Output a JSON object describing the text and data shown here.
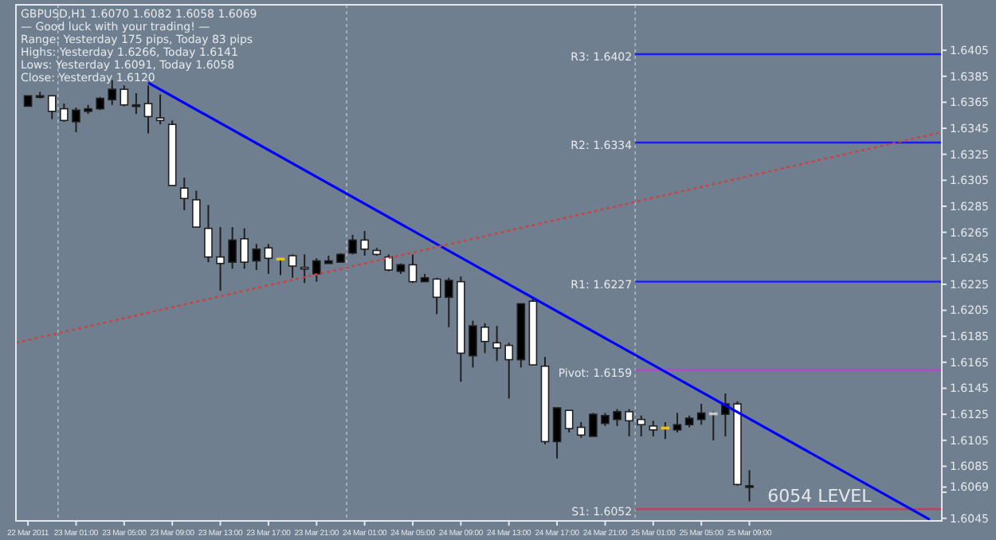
{
  "chart_data": {
    "type": "candlestick",
    "title": "GBPUSD,H1  1.6070 1.6082 1.6058 1.6069",
    "annotations": [
      "— Good luck with your trading! —",
      "Range: Yesterday 175 pips, Today 83 pips",
      "Highs: Yesterday 1.6266, Today 1.6141",
      "Lows: Yesterday 1.6091, Today 1.6058",
      "Close: Yesterday 1.6120",
      {
        "text": "6054 LEVEL",
        "x": "2011-03-25T10:30",
        "y": 1.6058
      }
    ],
    "x": [
      "2011-03-22T21:00",
      "2011-03-22T22:00",
      "2011-03-22T23:00",
      "2011-03-23T00:00",
      "2011-03-23T01:00",
      "2011-03-23T02:00",
      "2011-03-23T03:00",
      "2011-03-23T04:00",
      "2011-03-23T05:00",
      "2011-03-23T06:00",
      "2011-03-23T07:00",
      "2011-03-23T08:00",
      "2011-03-23T09:00",
      "2011-03-23T10:00",
      "2011-03-23T11:00",
      "2011-03-23T12:00",
      "2011-03-23T13:00",
      "2011-03-23T14:00",
      "2011-03-23T15:00",
      "2011-03-23T16:00",
      "2011-03-23T17:00",
      "2011-03-23T18:00",
      "2011-03-23T19:00",
      "2011-03-23T20:00",
      "2011-03-23T21:00",
      "2011-03-23T22:00",
      "2011-03-23T23:00",
      "2011-03-24T00:00",
      "2011-03-24T01:00",
      "2011-03-24T02:00",
      "2011-03-24T03:00",
      "2011-03-24T04:00",
      "2011-03-24T05:00",
      "2011-03-24T06:00",
      "2011-03-24T07:00",
      "2011-03-24T08:00",
      "2011-03-24T09:00",
      "2011-03-24T10:00",
      "2011-03-24T11:00",
      "2011-03-24T12:00",
      "2011-03-24T13:00",
      "2011-03-24T14:00",
      "2011-03-24T15:00",
      "2011-03-24T16:00",
      "2011-03-24T17:00",
      "2011-03-24T18:00",
      "2011-03-24T19:00",
      "2011-03-24T20:00",
      "2011-03-24T21:00",
      "2011-03-24T22:00",
      "2011-03-24T23:00",
      "2011-03-25T00:00",
      "2011-03-25T01:00",
      "2011-03-25T02:00",
      "2011-03-25T03:00",
      "2011-03-25T04:00",
      "2011-03-25T05:00",
      "2011-03-25T06:00",
      "2011-03-25T07:00",
      "2011-03-25T08:00",
      "2011-03-25T09:00"
    ],
    "ohlc": [
      [
        1.6362,
        1.637,
        1.6362,
        1.637
      ],
      [
        1.6369,
        1.6373,
        1.6368,
        1.637
      ],
      [
        1.637,
        1.637,
        1.6352,
        1.6358
      ],
      [
        1.636,
        1.6364,
        1.635,
        1.6351
      ],
      [
        1.635,
        1.6361,
        1.6342,
        1.6359
      ],
      [
        1.6358,
        1.6363,
        1.6356,
        1.636
      ],
      [
        1.636,
        1.6369,
        1.6359,
        1.6368
      ],
      [
        1.6367,
        1.6382,
        1.6363,
        1.6375
      ],
      [
        1.6375,
        1.6378,
        1.6362,
        1.6363
      ],
      [
        1.6362,
        1.6372,
        1.6356,
        1.6363
      ],
      [
        1.6364,
        1.6378,
        1.6341,
        1.6354
      ],
      [
        1.6353,
        1.6371,
        1.6348,
        1.6351
      ],
      [
        1.6348,
        1.6351,
        1.6301,
        1.6301
      ],
      [
        1.6299,
        1.6307,
        1.6282,
        1.6291
      ],
      [
        1.629,
        1.6297,
        1.6269,
        1.6269
      ],
      [
        1.6268,
        1.6286,
        1.6242,
        1.6246
      ],
      [
        1.6246,
        1.6269,
        1.622,
        1.6241
      ],
      [
        1.6242,
        1.6269,
        1.6237,
        1.6259
      ],
      [
        1.626,
        1.6268,
        1.6237,
        1.6242
      ],
      [
        1.6243,
        1.6256,
        1.6236,
        1.6252
      ],
      [
        1.6253,
        1.6256,
        1.6233,
        1.6245
      ],
      [
        1.6245,
        1.6245,
        1.6232,
        1.6245
      ],
      [
        1.6247,
        1.6248,
        1.623,
        1.6239
      ],
      [
        1.6238,
        1.6248,
        1.6226,
        1.6237
      ],
      [
        1.6233,
        1.6245,
        1.6227,
        1.6243
      ],
      [
        1.6241,
        1.6247,
        1.6241,
        1.6243
      ],
      [
        1.6242,
        1.6249,
        1.6242,
        1.6248
      ],
      [
        1.6249,
        1.6263,
        1.6248,
        1.6259
      ],
      [
        1.6259,
        1.6266,
        1.6247,
        1.6252
      ],
      [
        1.6251,
        1.6253,
        1.6247,
        1.6248
      ],
      [
        1.6246,
        1.6248,
        1.6235,
        1.6236
      ],
      [
        1.6235,
        1.6241,
        1.6233,
        1.624
      ],
      [
        1.624,
        1.6248,
        1.6226,
        1.6227
      ],
      [
        1.6227,
        1.6233,
        1.6227,
        1.623
      ],
      [
        1.6229,
        1.623,
        1.6202,
        1.6215
      ],
      [
        1.6215,
        1.623,
        1.6192,
        1.6228
      ],
      [
        1.6227,
        1.6231,
        1.615,
        1.6172
      ],
      [
        1.617,
        1.6197,
        1.6161,
        1.6193
      ],
      [
        1.6192,
        1.6195,
        1.6172,
        1.6181
      ],
      [
        1.618,
        1.6193,
        1.6166,
        1.6176
      ],
      [
        1.6178,
        1.618,
        1.6137,
        1.6167
      ],
      [
        1.6167,
        1.621,
        1.6161,
        1.621
      ],
      [
        1.6212,
        1.6214,
        1.6163,
        1.6163
      ],
      [
        1.6162,
        1.6169,
        1.6102,
        1.6104
      ],
      [
        1.6104,
        1.613,
        1.6091,
        1.613
      ],
      [
        1.6128,
        1.6128,
        1.6111,
        1.6114
      ],
      [
        1.6115,
        1.6119,
        1.6107,
        1.6109
      ],
      [
        1.6108,
        1.6126,
        1.6108,
        1.6125
      ],
      [
        1.6118,
        1.6126,
        1.6116,
        1.6124
      ],
      [
        1.6121,
        1.6129,
        1.6116,
        1.6127
      ],
      [
        1.6127,
        1.6129,
        1.6108,
        1.612
      ],
      [
        1.6121,
        1.6124,
        1.6108,
        1.6117
      ],
      [
        1.6116,
        1.612,
        1.6108,
        1.6113
      ],
      [
        1.6115,
        1.6119,
        1.6106,
        1.6115
      ],
      [
        1.6113,
        1.6126,
        1.6111,
        1.6117
      ],
      [
        1.6117,
        1.6124,
        1.6115,
        1.6122
      ],
      [
        1.6121,
        1.6133,
        1.6117,
        1.6126
      ],
      [
        1.6126,
        1.6127,
        1.6105,
        1.6126
      ],
      [
        1.6125,
        1.6141,
        1.6108,
        1.6133
      ],
      [
        1.6133,
        1.6135,
        1.607,
        1.6071
      ],
      [
        1.607,
        1.6082,
        1.6058,
        1.6069
      ]
    ],
    "colors": [
      "#000000",
      "#000000",
      "#ffffff",
      "#ffffff",
      "#000000",
      "#000000",
      "#000000",
      "#000000",
      "#ffffff",
      "#000000",
      "#ffffff",
      "#ffffff",
      "#ffffff",
      "#ffffff",
      "#ffffff",
      "#ffffff",
      "#ffffff",
      "#000000",
      "#ffffff",
      "#000000",
      "#ffffff",
      "#e8c020",
      "#ffffff",
      "#ffffff",
      "#000000",
      "#000000",
      "#000000",
      "#000000",
      "#ffffff",
      "#ffffff",
      "#ffffff",
      "#000000",
      "#ffffff",
      "#000000",
      "#ffffff",
      "#000000",
      "#ffffff",
      "#000000",
      "#ffffff",
      "#ffffff",
      "#ffffff",
      "#000000",
      "#ffffff",
      "#ffffff",
      "#000000",
      "#ffffff",
      "#ffffff",
      "#000000",
      "#000000",
      "#000000",
      "#ffffff",
      "#ffffff",
      "#ffffff",
      "#e8c020",
      "#000000",
      "#000000",
      "#000000",
      "#c8c8c8",
      "#000000",
      "#ffffff",
      "#000000"
    ],
    "series": [
      {
        "type": "line",
        "color": "#0000ff",
        "line_style": "solid",
        "x": [
          "2011-03-23T07:00",
          "2011-03-26T00:00"
        ],
        "values": [
          1.638,
          1.6044
        ]
      },
      {
        "type": "line",
        "color": "#d04040",
        "line_style": "dotted",
        "x": [
          "2011-03-22T20:00",
          "2011-03-26T01:00"
        ],
        "values": [
          1.618,
          1.6342
        ]
      }
    ],
    "ref_lines": [
      {
        "axis": "y",
        "value": 1.6402,
        "label": "R3: 1.6402",
        "color": "#1a1aff"
      },
      {
        "axis": "y",
        "value": 1.6334,
        "label": "R2: 1.6334",
        "color": "#1a1aff"
      },
      {
        "axis": "y",
        "value": 1.6227,
        "label": "R1: 1.6227",
        "color": "#1a1aff"
      },
      {
        "axis": "y",
        "value": 1.6159,
        "label": "Pivot: 1.6159",
        "color": "#b048c8"
      },
      {
        "axis": "y",
        "value": 1.6052,
        "label": "S1: 1.6052",
        "color": "#b04858"
      }
    ],
    "xlim": [
      "2011-03-22T20:00",
      "2011-03-26T01:00"
    ],
    "xticks": [
      {
        "value": "2011-03-22T21:00",
        "label": "22 Mar 2011"
      },
      {
        "value": "2011-03-23T01:00",
        "label": "23 Mar 01:00"
      },
      {
        "value": "2011-03-23T05:00",
        "label": "23 Mar 05:00"
      },
      {
        "value": "2011-03-23T09:00",
        "label": "23 Mar 09:00"
      },
      {
        "value": "2011-03-23T13:00",
        "label": "23 Mar 13:00"
      },
      {
        "value": "2011-03-23T17:00",
        "label": "23 Mar 17:00"
      },
      {
        "value": "2011-03-23T21:00",
        "label": "23 Mar 21:00"
      },
      {
        "value": "2011-03-24T01:00",
        "label": "24 Mar 01:00"
      },
      {
        "value": "2011-03-24T05:00",
        "label": "24 Mar 05:00"
      },
      {
        "value": "2011-03-24T09:00",
        "label": "24 Mar 09:00"
      },
      {
        "value": "2011-03-24T13:00",
        "label": "24 Mar 13:00"
      },
      {
        "value": "2011-03-24T17:00",
        "label": "24 Mar 17:00"
      },
      {
        "value": "2011-03-24T21:00",
        "label": "24 Mar 21:00"
      },
      {
        "value": "2011-03-25T01:00",
        "label": "25 Mar 01:00"
      },
      {
        "value": "2011-03-25T05:00",
        "label": "25 Mar 05:00"
      },
      {
        "value": "2011-03-25T09:00",
        "label": "25 Mar 09:00"
      }
    ],
    "ylim": [
      1.6043,
      1.644
    ],
    "yticks": [
      1.6405,
      1.6385,
      1.6365,
      1.6345,
      1.6325,
      1.6305,
      1.6285,
      1.6265,
      1.6245,
      1.6225,
      1.6205,
      1.6185,
      1.6165,
      1.6145,
      1.6125,
      1.6105,
      1.6085,
      {
        "value": 1.6069,
        "label": "1.6069"
      },
      {
        "value": 1.6065,
        "label": null
      },
      1.6045
    ],
    "grid": false
  }
}
